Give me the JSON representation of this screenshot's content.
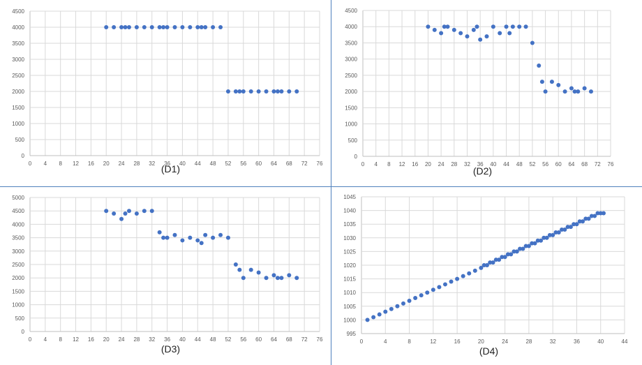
{
  "chart_data": [
    {
      "type": "scatter",
      "title": "",
      "caption": "(D1)",
      "xlabel": "",
      "ylabel": "",
      "xlim": [
        0,
        76
      ],
      "ylim": [
        0,
        4500
      ],
      "xticks": [
        0,
        4,
        8,
        12,
        16,
        20,
        24,
        28,
        32,
        36,
        40,
        44,
        48,
        52,
        56,
        60,
        64,
        68,
        72,
        76
      ],
      "yticks": [
        0,
        500,
        1000,
        1500,
        2000,
        2500,
        3000,
        3500,
        4000,
        4500
      ],
      "grid": true,
      "series": [
        {
          "x": [
            20,
            22,
            24,
            25,
            26,
            28,
            30,
            32,
            34,
            35,
            36,
            38,
            40,
            42,
            44,
            45,
            46,
            48,
            50,
            52,
            54,
            55,
            56,
            58,
            60,
            62,
            64,
            65,
            66,
            68,
            70
          ],
          "y": [
            4000,
            4000,
            4000,
            4000,
            4000,
            4000,
            4000,
            4000,
            4000,
            4000,
            4000,
            4000,
            4000,
            4000,
            4000,
            4000,
            4000,
            4000,
            4000,
            2000,
            2000,
            2000,
            2000,
            2000,
            2000,
            2000,
            2000,
            2000,
            2000,
            2000,
            2000
          ]
        }
      ]
    },
    {
      "type": "scatter",
      "title": "",
      "caption": "(D2)",
      "xlabel": "",
      "ylabel": "",
      "xlim": [
        0,
        76
      ],
      "ylim": [
        0,
        4500
      ],
      "xticks": [
        0,
        4,
        8,
        12,
        16,
        20,
        24,
        28,
        32,
        36,
        40,
        44,
        48,
        52,
        56,
        60,
        64,
        68,
        72,
        76
      ],
      "yticks": [
        0,
        500,
        1000,
        1500,
        2000,
        2500,
        3000,
        3500,
        4000,
        4500
      ],
      "grid": true,
      "series": [
        {
          "x": [
            20,
            22,
            24,
            25,
            26,
            28,
            30,
            32,
            34,
            35,
            36,
            38,
            40,
            42,
            44,
            45,
            46,
            48,
            50,
            52,
            54,
            55,
            56,
            58,
            60,
            62,
            64,
            65,
            66,
            68,
            70
          ],
          "y": [
            4000,
            3900,
            3800,
            4000,
            4000,
            3900,
            3800,
            3700,
            3900,
            4000,
            3600,
            3700,
            4000,
            3800,
            4000,
            3800,
            4000,
            4000,
            4000,
            3500,
            2800,
            2300,
            2000,
            2300,
            2200,
            2000,
            2100,
            2000,
            2000,
            2100,
            2000
          ]
        }
      ]
    },
    {
      "type": "scatter",
      "title": "",
      "caption": "(D3)",
      "xlabel": "",
      "ylabel": "",
      "xlim": [
        0,
        76
      ],
      "ylim": [
        0,
        5000
      ],
      "xticks": [
        0,
        4,
        8,
        12,
        16,
        20,
        24,
        28,
        32,
        36,
        40,
        44,
        48,
        52,
        56,
        60,
        64,
        68,
        72,
        76
      ],
      "yticks": [
        0,
        500,
        1000,
        1500,
        2000,
        2500,
        3000,
        3500,
        4000,
        4500,
        5000
      ],
      "grid": true,
      "series": [
        {
          "x": [
            20,
            22,
            24,
            25,
            26,
            28,
            30,
            32,
            34,
            35,
            36,
            38,
            40,
            42,
            44,
            45,
            46,
            48,
            50,
            52,
            54,
            55,
            56,
            58,
            60,
            62,
            64,
            65,
            66,
            68,
            70
          ],
          "y": [
            4500,
            4400,
            4200,
            4400,
            4500,
            4400,
            4500,
            4500,
            3700,
            3500,
            3500,
            3600,
            3400,
            3500,
            3400,
            3300,
            3600,
            3500,
            3600,
            3500,
            2500,
            2300,
            2000,
            2300,
            2200,
            2000,
            2100,
            2000,
            2000,
            2100,
            2000
          ]
        }
      ]
    },
    {
      "type": "scatter",
      "title": "",
      "caption": "(D4)",
      "xlabel": "",
      "ylabel": "",
      "xlim": [
        0,
        44
      ],
      "ylim": [
        995,
        1045
      ],
      "xticks": [
        0,
        4,
        8,
        12,
        16,
        20,
        24,
        28,
        32,
        36,
        40,
        44
      ],
      "yticks": [
        995,
        1000,
        1005,
        1010,
        1015,
        1020,
        1025,
        1030,
        1035,
        1040,
        1045
      ],
      "grid": true,
      "series": [
        {
          "x": [
            1,
            2,
            3,
            4,
            5,
            6,
            7,
            8,
            9,
            10,
            11,
            12,
            13,
            14,
            15,
            16,
            17,
            18,
            19,
            20,
            20.5,
            21,
            21.5,
            22,
            22.5,
            23,
            23.5,
            24,
            24.5,
            25,
            25.5,
            26,
            26.5,
            27,
            27.5,
            28,
            28.5,
            29,
            29.5,
            30,
            30.5,
            31,
            31.5,
            32,
            32.5,
            33,
            33.5,
            34,
            34.5,
            35,
            35.5,
            36,
            36.5,
            37,
            37.5,
            38,
            38.5,
            39,
            39.5,
            40,
            40.5
          ],
          "y": [
            1000,
            1001,
            1002,
            1003,
            1004,
            1005,
            1006,
            1007,
            1008,
            1009,
            1010,
            1011,
            1012,
            1013,
            1014,
            1015,
            1016,
            1017,
            1018,
            1019,
            1020,
            1020,
            1021,
            1021,
            1022,
            1022,
            1023,
            1023,
            1024,
            1024,
            1025,
            1025,
            1026,
            1026,
            1027,
            1027,
            1028,
            1028,
            1029,
            1029,
            1030,
            1030,
            1031,
            1031,
            1032,
            1032,
            1033,
            1033,
            1034,
            1034,
            1035,
            1035,
            1036,
            1036,
            1037,
            1037,
            1038,
            1038,
            1039,
            1039,
            1039
          ]
        }
      ]
    }
  ],
  "colors": {
    "marker": "#4472c4",
    "grid": "#d9d9d9",
    "frame": "#4f81bd"
  }
}
